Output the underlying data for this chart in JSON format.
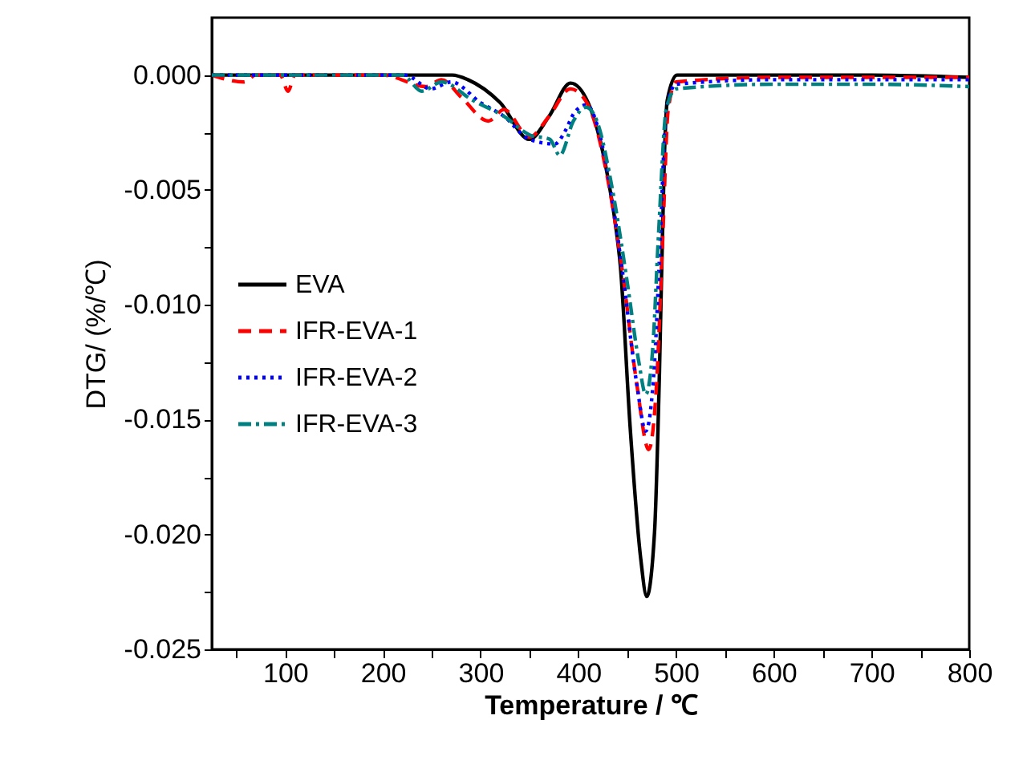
{
  "chart_data": {
    "type": "line",
    "xlabel": "Temperature / ℃",
    "ylabel": "DTG/ (%/℃)",
    "xlim": [
      25,
      800
    ],
    "ylim": [
      -0.025,
      0.0025
    ],
    "xticks": [
      {
        "value": 50,
        "label": null
      },
      100,
      {
        "value": 150,
        "label": null
      },
      200,
      {
        "value": 250,
        "label": null
      },
      300,
      {
        "value": 350,
        "label": null
      },
      400,
      {
        "value": 450,
        "label": null
      },
      500,
      {
        "value": 550,
        "label": null
      },
      600,
      {
        "value": 650,
        "label": null
      },
      700,
      {
        "value": 750,
        "label": null
      },
      800
    ],
    "yticks": [
      {
        "value": -0.025,
        "label": "-0.025"
      },
      {
        "value": -0.0225,
        "label": null
      },
      {
        "value": -0.02,
        "label": "-0.020"
      },
      {
        "value": -0.0175,
        "label": null
      },
      {
        "value": -0.015,
        "label": "-0.015"
      },
      {
        "value": -0.0125,
        "label": null
      },
      {
        "value": -0.01,
        "label": "-0.010"
      },
      {
        "value": -0.0075,
        "label": null
      },
      {
        "value": -0.005,
        "label": "-0.005"
      },
      {
        "value": -0.0025,
        "label": null
      },
      {
        "value": 0,
        "label": "0.000"
      }
    ],
    "grid": false,
    "legend": "left",
    "marker": "none",
    "series": [
      {
        "name": "EVA",
        "color": "#000000",
        "line_style": "solid",
        "x": [
          25,
          100,
          200,
          271,
          287,
          320,
          350,
          370,
          392,
          410,
          430,
          438,
          443,
          453,
          464,
          470,
          478,
          483,
          488,
          491,
          501,
          600,
          700,
          800
        ],
        "values": [
          0,
          0,
          0,
          0,
          -0.0002,
          -0.0012,
          -0.0028,
          -0.0018,
          -0.00035,
          -0.0012,
          -0.0044,
          -0.0065,
          -0.0083,
          -0.0153,
          -0.0211,
          -0.0227,
          -0.0199,
          -0.013,
          -0.0036,
          -0.0011,
          0,
          0,
          0,
          -0.0001
        ]
      },
      {
        "name": "IFR-EVA-1",
        "color": "#ff0000",
        "line_style": "dashed",
        "x": [
          25,
          58,
          70,
          95,
          103,
          110,
          200,
          244,
          260,
          281,
          308,
          324,
          350,
          370,
          392,
          410,
          430,
          445,
          460,
          472,
          480,
          486,
          492,
          500,
          600,
          700,
          800
        ],
        "values": [
          0,
          -0.0003,
          0,
          0,
          -0.0007,
          0,
          0,
          -0.0005,
          -0.0002,
          -0.001,
          -0.002,
          -0.0015,
          -0.0027,
          -0.0018,
          -0.0006,
          -0.0013,
          -0.0045,
          -0.0085,
          -0.0135,
          -0.0163,
          -0.0135,
          -0.0075,
          -0.0015,
          -0.0003,
          -0.0001,
          -0.0001,
          -0.0001
        ]
      },
      {
        "name": "IFR-EVA-2",
        "color": "#0000ff",
        "line_style": "dotted",
        "x": [
          25,
          100,
          200,
          223,
          249,
          270,
          300,
          324,
          350,
          376,
          387,
          395,
          408,
          430,
          445,
          460,
          469,
          478,
          484,
          490,
          500,
          600,
          700,
          800
        ],
        "values": [
          0,
          0,
          0,
          0,
          -0.0006,
          -0.0003,
          -0.0012,
          -0.0018,
          -0.0028,
          -0.003,
          -0.0024,
          -0.0017,
          -0.0013,
          -0.0042,
          -0.0085,
          -0.0135,
          -0.0155,
          -0.0125,
          -0.007,
          -0.0015,
          -0.0004,
          -0.0002,
          -0.0002,
          -0.0002
        ]
      },
      {
        "name": "IFR-EVA-3",
        "color": "#008080",
        "line_style": "dashdot",
        "x": [
          25,
          100,
          200,
          220,
          240,
          260,
          292,
          324,
          350,
          371,
          381,
          395,
          408,
          419,
          435,
          450,
          462,
          469,
          476,
          482,
          490,
          500,
          600,
          700,
          800
        ],
        "values": [
          0,
          0,
          0,
          0,
          -0.0007,
          -0.0003,
          -0.0011,
          -0.0018,
          -0.0026,
          -0.0028,
          -0.0035,
          -0.002,
          -0.0014,
          -0.002,
          -0.005,
          -0.009,
          -0.0125,
          -0.0139,
          -0.012,
          -0.007,
          -0.0015,
          -0.0006,
          -0.0004,
          -0.0004,
          -0.0005
        ]
      }
    ]
  }
}
